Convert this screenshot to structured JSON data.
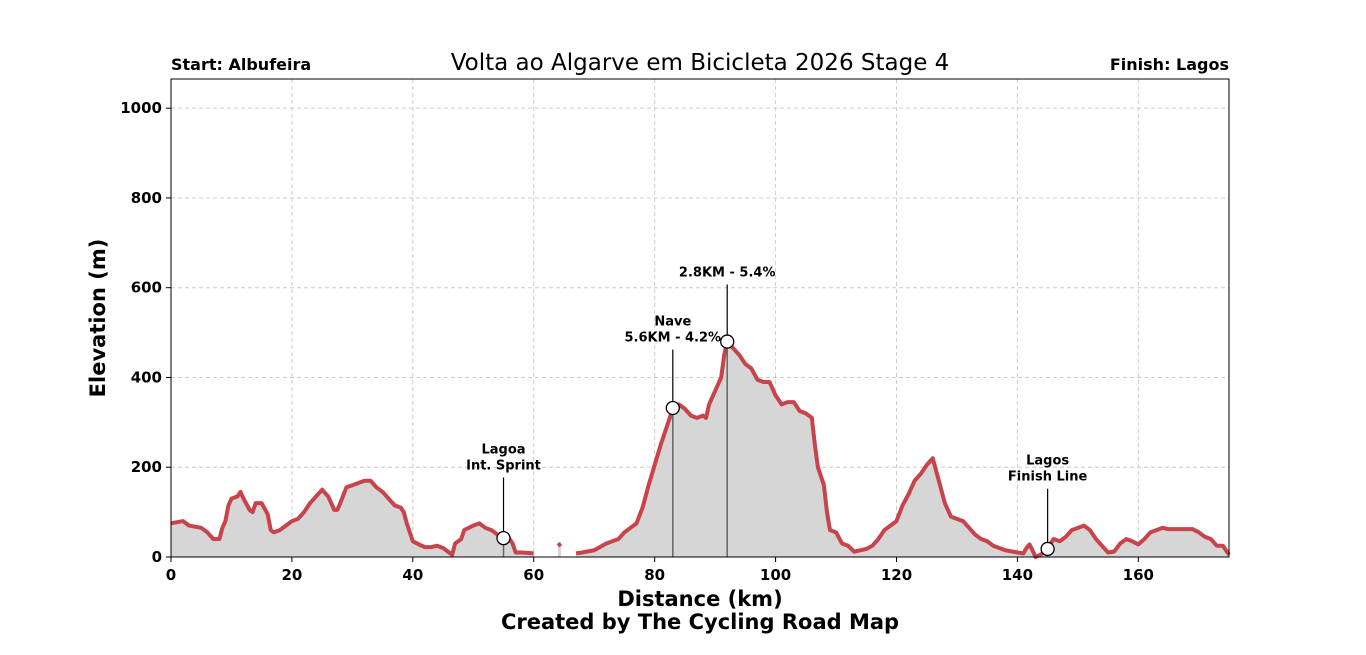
{
  "chart_data": {
    "type": "area",
    "title": "Volta ao Algarve em Bicicleta 2026 Stage 4",
    "start_label": "Start: Albufeira",
    "finish_label": "Finish: Lagos",
    "xlabel": "Distance (km)",
    "ylabel": "Elevation (m)",
    "credit": "Created by The Cycling Road Map",
    "xlim": [
      0,
      175
    ],
    "ylim": [
      0,
      1065
    ],
    "xticks": [
      0,
      20,
      40,
      60,
      80,
      100,
      120,
      140,
      160
    ],
    "yticks": [
      0,
      200,
      400,
      600,
      800,
      1000
    ],
    "grid": true,
    "line_color": "#c8434a",
    "fill_color": "#d6d6d6",
    "profile": [
      [
        0,
        75
      ],
      [
        2,
        80
      ],
      [
        3,
        70
      ],
      [
        5,
        65
      ],
      [
        6,
        55
      ],
      [
        7,
        40
      ],
      [
        8,
        40
      ],
      [
        8.5,
        65
      ],
      [
        9,
        80
      ],
      [
        9.5,
        115
      ],
      [
        10,
        130
      ],
      [
        11,
        135
      ],
      [
        11.5,
        145
      ],
      [
        12,
        130
      ],
      [
        13,
        105
      ],
      [
        13.5,
        100
      ],
      [
        14,
        120
      ],
      [
        15,
        120
      ],
      [
        16,
        95
      ],
      [
        16.5,
        60
      ],
      [
        17,
        55
      ],
      [
        18,
        60
      ],
      [
        19,
        70
      ],
      [
        20,
        80
      ],
      [
        21,
        85
      ],
      [
        22,
        100
      ],
      [
        23,
        120
      ],
      [
        24,
        135
      ],
      [
        25,
        150
      ],
      [
        26,
        135
      ],
      [
        27,
        105
      ],
      [
        27.5,
        105
      ],
      [
        28,
        120
      ],
      [
        29,
        155
      ],
      [
        30,
        160
      ],
      [
        31,
        165
      ],
      [
        32,
        170
      ],
      [
        33,
        170
      ],
      [
        34,
        155
      ],
      [
        35,
        145
      ],
      [
        36,
        130
      ],
      [
        37,
        115
      ],
      [
        38,
        110
      ],
      [
        38.5,
        100
      ],
      [
        39,
        75
      ],
      [
        40,
        35
      ],
      [
        41,
        28
      ],
      [
        42,
        22
      ],
      [
        43,
        22
      ],
      [
        44,
        25
      ],
      [
        45,
        20
      ],
      [
        46,
        10
      ],
      [
        46.5,
        5
      ],
      [
        47,
        30
      ],
      [
        48,
        40
      ],
      [
        48.5,
        60
      ],
      [
        50,
        70
      ],
      [
        51,
        75
      ],
      [
        52,
        65
      ],
      [
        53,
        60
      ],
      [
        54,
        50
      ],
      [
        55,
        42
      ],
      [
        56,
        40
      ],
      [
        56.5,
        30
      ],
      [
        57,
        10
      ],
      [
        58,
        10
      ],
      [
        60,
        8
      ],
      [
        60.1,
        null
      ],
      [
        64,
        25
      ],
      [
        64.5,
        30
      ],
      [
        64.6,
        null
      ],
      [
        67,
        8
      ],
      [
        68,
        10
      ],
      [
        70,
        15
      ],
      [
        72,
        30
      ],
      [
        74,
        40
      ],
      [
        75,
        55
      ],
      [
        76,
        65
      ],
      [
        77,
        75
      ],
      [
        78,
        110
      ],
      [
        79,
        160
      ],
      [
        80,
        205
      ],
      [
        81,
        250
      ],
      [
        82,
        290
      ],
      [
        83,
        330
      ],
      [
        84,
        340
      ],
      [
        85,
        330
      ],
      [
        86,
        315
      ],
      [
        87,
        310
      ],
      [
        88,
        315
      ],
      [
        88.5,
        310
      ],
      [
        89,
        340
      ],
      [
        90,
        370
      ],
      [
        91,
        400
      ],
      [
        91.5,
        450
      ],
      [
        92,
        480
      ],
      [
        93,
        465
      ],
      [
        94,
        450
      ],
      [
        95,
        430
      ],
      [
        96,
        420
      ],
      [
        97,
        395
      ],
      [
        98,
        390
      ],
      [
        99,
        390
      ],
      [
        100,
        360
      ],
      [
        101,
        340
      ],
      [
        102,
        345
      ],
      [
        103,
        345
      ],
      [
        104,
        325
      ],
      [
        105,
        320
      ],
      [
        106,
        310
      ],
      [
        106.5,
        250
      ],
      [
        107,
        200
      ],
      [
        108,
        160
      ],
      [
        108.5,
        100
      ],
      [
        109,
        60
      ],
      [
        110,
        55
      ],
      [
        111,
        30
      ],
      [
        112,
        25
      ],
      [
        113,
        12
      ],
      [
        114,
        15
      ],
      [
        115,
        18
      ],
      [
        116,
        25
      ],
      [
        117,
        40
      ],
      [
        118,
        60
      ],
      [
        119,
        70
      ],
      [
        120,
        80
      ],
      [
        121,
        115
      ],
      [
        122,
        140
      ],
      [
        123,
        170
      ],
      [
        124,
        185
      ],
      [
        125,
        205
      ],
      [
        126,
        220
      ],
      [
        127,
        170
      ],
      [
        128,
        120
      ],
      [
        129,
        90
      ],
      [
        130,
        85
      ],
      [
        131,
        80
      ],
      [
        132,
        65
      ],
      [
        133,
        50
      ],
      [
        134,
        40
      ],
      [
        135,
        35
      ],
      [
        136,
        25
      ],
      [
        137,
        20
      ],
      [
        138,
        15
      ],
      [
        140,
        10
      ],
      [
        141,
        8
      ],
      [
        141.5,
        20
      ],
      [
        142,
        28
      ],
      [
        142.5,
        15
      ],
      [
        143,
        0
      ],
      [
        144.5,
        10
      ],
      [
        145,
        20
      ],
      [
        146,
        40
      ],
      [
        147,
        35
      ],
      [
        148,
        45
      ],
      [
        149,
        60
      ],
      [
        150,
        65
      ],
      [
        151,
        70
      ],
      [
        152,
        60
      ],
      [
        153,
        40
      ],
      [
        154,
        25
      ],
      [
        155,
        10
      ],
      [
        156,
        12
      ],
      [
        157,
        30
      ],
      [
        158,
        40
      ],
      [
        159,
        35
      ],
      [
        160,
        28
      ],
      [
        161,
        40
      ],
      [
        162,
        55
      ],
      [
        163,
        60
      ],
      [
        164,
        65
      ],
      [
        165,
        62
      ],
      [
        167,
        62
      ],
      [
        169,
        62
      ],
      [
        170,
        55
      ],
      [
        171,
        45
      ],
      [
        172,
        40
      ],
      [
        173,
        25
      ],
      [
        174,
        25
      ],
      [
        175,
        5
      ]
    ],
    "annotations": [
      {
        "km": 55,
        "elev": 42,
        "lines": [
          "Lagoa",
          "Int. Sprint"
        ],
        "label_elev": 195
      },
      {
        "km": 83,
        "elev": 332,
        "lines": [
          "Nave",
          "5.6KM - 4.2%"
        ],
        "label_elev": 480
      },
      {
        "km": 92,
        "elev": 480,
        "lines": [
          "2.8KM - 5.4%"
        ],
        "label_elev": 625
      },
      {
        "km": 145,
        "elev": 18,
        "lines": [
          "Lagos",
          "Finish Line"
        ],
        "label_elev": 170
      }
    ]
  }
}
